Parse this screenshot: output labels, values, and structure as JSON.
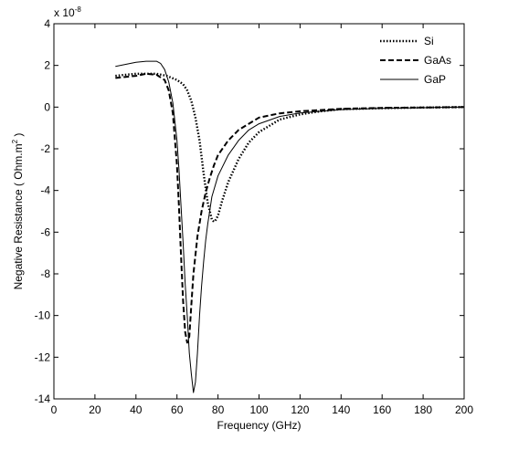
{
  "chart_data": {
    "type": "line",
    "title": "",
    "xlabel": "Frequency (GHz)",
    "ylabel_main": "Negative Resistance ( Ohm.m",
    "ylabel_sup": "2",
    "ylabel_close": " )",
    "exponent_base": "x 10",
    "exponent_power": "-8",
    "xlim": [
      0,
      200
    ],
    "ylim": [
      -14,
      4
    ],
    "xticks": [
      0,
      20,
      40,
      60,
      80,
      100,
      120,
      140,
      160,
      180,
      200
    ],
    "yticks": [
      4,
      2,
      0,
      -2,
      -4,
      -6,
      -8,
      -10,
      -12,
      -14
    ],
    "grid": false,
    "legend_position": "top-right",
    "series": [
      {
        "name": "Si",
        "style": "dotted",
        "x": [
          30,
          35,
          40,
          45,
          50,
          55,
          60,
          63,
          65,
          67,
          69,
          71,
          73,
          75,
          77,
          78,
          79,
          80,
          82,
          85,
          90,
          95,
          100,
          110,
          120,
          130,
          140,
          160,
          180,
          200
        ],
        "y": [
          1.5,
          1.55,
          1.6,
          1.6,
          1.6,
          1.5,
          1.3,
          1.1,
          0.8,
          0.3,
          -0.5,
          -1.6,
          -3.2,
          -4.6,
          -5.4,
          -5.5,
          -5.4,
          -5.2,
          -4.5,
          -3.6,
          -2.5,
          -1.7,
          -1.2,
          -0.6,
          -0.35,
          -0.2,
          -0.1,
          -0.05,
          -0.02,
          0.0
        ]
      },
      {
        "name": "GaAs",
        "style": "dashed",
        "x": [
          30,
          35,
          40,
          45,
          50,
          54,
          56,
          58,
          60,
          61,
          62,
          63,
          64,
          65,
          66,
          67,
          68,
          70,
          72,
          74,
          76,
          78,
          80,
          85,
          90,
          95,
          100,
          110,
          120,
          140,
          160,
          180,
          200
        ],
        "y": [
          1.4,
          1.45,
          1.5,
          1.6,
          1.55,
          1.3,
          0.8,
          -0.3,
          -2.8,
          -4.8,
          -7.2,
          -9.3,
          -10.8,
          -11.3,
          -11.0,
          -9.5,
          -8.0,
          -6.2,
          -5.0,
          -4.1,
          -3.4,
          -2.8,
          -2.3,
          -1.6,
          -1.1,
          -0.8,
          -0.5,
          -0.3,
          -0.2,
          -0.08,
          -0.04,
          -0.02,
          0.0
        ]
      },
      {
        "name": "GaP",
        "style": "solid",
        "x": [
          30,
          35,
          40,
          45,
          50,
          52,
          54,
          56,
          58,
          60,
          61,
          62,
          63,
          64,
          65,
          66,
          67,
          68,
          69,
          70,
          71,
          72,
          73,
          74,
          75,
          77,
          80,
          85,
          90,
          95,
          100,
          110,
          120,
          140,
          160,
          180,
          200
        ],
        "y": [
          1.95,
          2.05,
          2.15,
          2.2,
          2.2,
          2.1,
          1.8,
          1.2,
          0.2,
          -1.6,
          -3.0,
          -4.8,
          -6.5,
          -8.5,
          -10.0,
          -11.8,
          -12.8,
          -13.7,
          -13.2,
          -11.8,
          -10.0,
          -8.6,
          -7.4,
          -6.4,
          -5.6,
          -4.3,
          -3.3,
          -2.3,
          -1.6,
          -1.1,
          -0.8,
          -0.45,
          -0.28,
          -0.12,
          -0.06,
          -0.03,
          0.0
        ]
      }
    ]
  }
}
